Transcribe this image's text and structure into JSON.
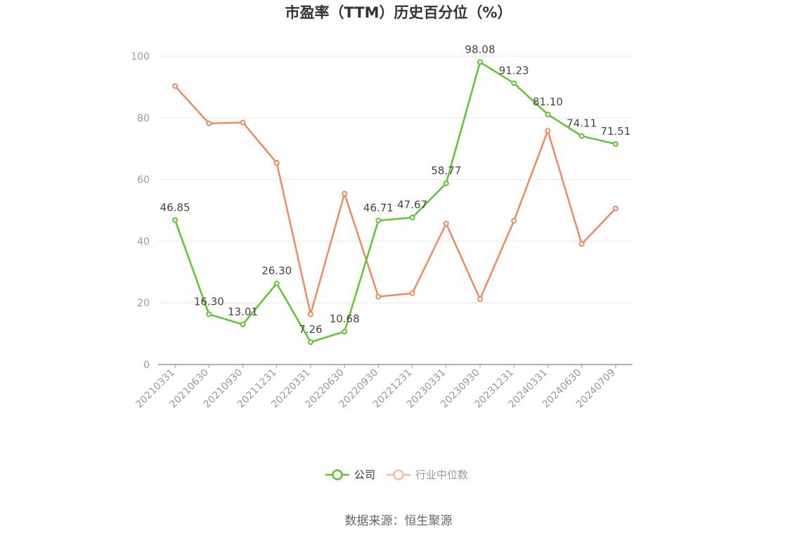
{
  "chart_data": {
    "type": "line",
    "title": "市盈率（TTM）历史百分位（%）",
    "categories": [
      "20210331",
      "20210630",
      "20210930",
      "20211231",
      "20220331",
      "20220630",
      "20220930",
      "20221231",
      "20230331",
      "20230930",
      "20231231",
      "20240331",
      "20240630",
      "20240709"
    ],
    "series": [
      {
        "name": "公司",
        "color": "#5bc62d",
        "values": [
          46.85,
          16.3,
          13.01,
          26.3,
          7.26,
          10.68,
          46.71,
          47.67,
          58.77,
          98.08,
          91.23,
          81.1,
          74.11,
          71.51
        ],
        "labels": [
          "46.85",
          "16.30",
          "13.01",
          "26.30",
          "7.26",
          "10.68",
          "46.71",
          "47.67",
          "58.77",
          "98.08",
          "91.23",
          "81.10",
          "74.11",
          "71.51"
        ]
      },
      {
        "name": "行业中位数",
        "color": "#f0895f",
        "legend_color": "#f7bda4",
        "values": [
          90.3,
          78.2,
          78.5,
          65.4,
          16.3,
          55.4,
          22.0,
          23.1,
          45.7,
          21.2,
          46.6,
          75.8,
          39.1,
          50.6
        ]
      }
    ],
    "ylim": [
      0,
      100
    ],
    "yticks": [
      "0",
      "20",
      "40",
      "60",
      "80",
      "100"
    ],
    "grid": true,
    "legend": "bottom"
  },
  "source": "数据来源：恒生聚源"
}
